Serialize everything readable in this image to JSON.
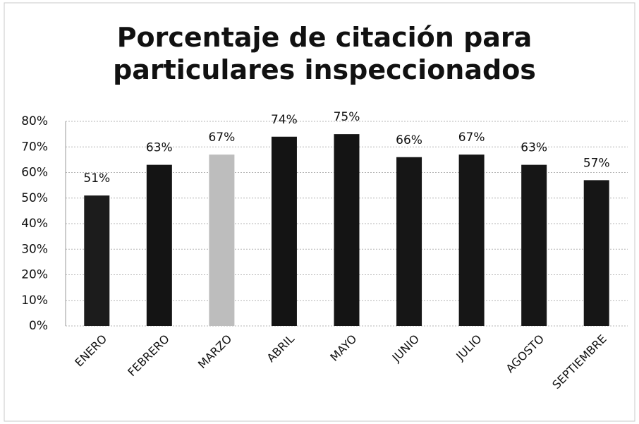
{
  "chart_data": {
    "type": "bar",
    "title": "Porcentaje de citación para particulares inspeccionados",
    "categories": [
      "ENERO",
      "FEBRERO",
      "MARZO",
      "ABRIL",
      "MAYO",
      "JUNIO",
      "JULIO",
      "AGOSTO",
      "SEPTIEMBRE"
    ],
    "values": [
      51,
      63,
      67,
      74,
      75,
      66,
      67,
      63,
      57
    ],
    "value_labels": [
      "51%",
      "63%",
      "67%",
      "74%",
      "75%",
      "66%",
      "67%",
      "63%",
      "57%"
    ],
    "colors": [
      "#1c1c1c",
      "#141414",
      "#bdbdbd",
      "#141414",
      "#141414",
      "#161616",
      "#161616",
      "#161616",
      "#161616"
    ],
    "ylim": [
      0,
      80
    ],
    "yticks": [
      {
        "value": 0,
        "label": "0%"
      },
      {
        "value": 10,
        "label": "10%"
      },
      {
        "value": 20,
        "label": "20%"
      },
      {
        "value": 30,
        "label": "30%"
      },
      {
        "value": 40,
        "label": "40%"
      },
      {
        "value": 50,
        "label": "50%"
      },
      {
        "value": 60,
        "label": "60%"
      },
      {
        "value": 70,
        "label": "70%"
      },
      {
        "value": 80,
        "label": "80%"
      }
    ],
    "grid": true
  }
}
